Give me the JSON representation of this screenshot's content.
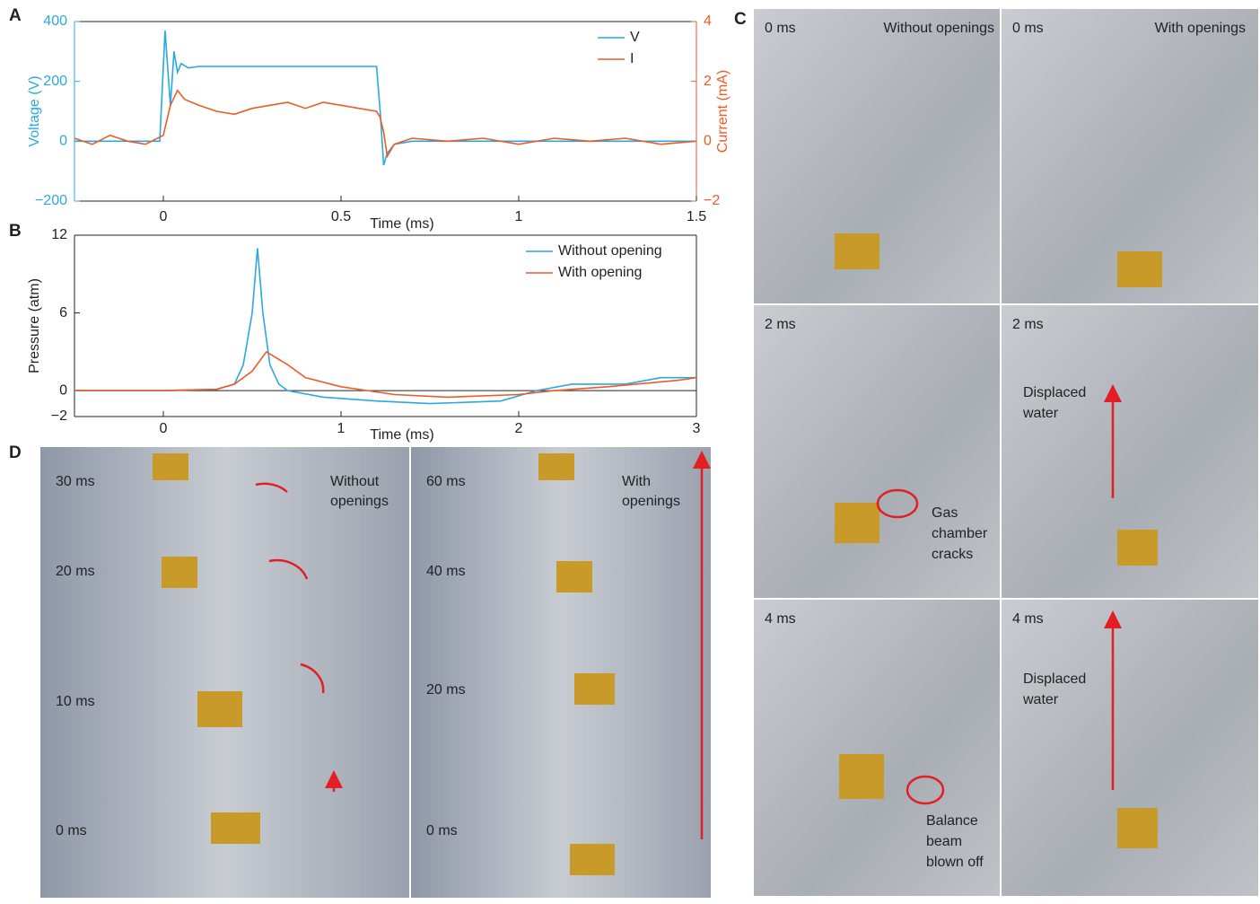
{
  "chart_data": [
    {
      "type": "line",
      "panel": "A",
      "xlabel": "Time (ms)",
      "ylabel": "Voltage (V)",
      "y2label": "Current (mA)",
      "xlim": [
        -0.25,
        1.5
      ],
      "xticks": [
        0,
        0.5,
        1,
        1.5
      ],
      "ylim": [
        -200,
        400
      ],
      "yticks": [
        {
          "value": -200,
          "label": "−200"
        },
        0,
        200,
        400
      ],
      "y2lim": [
        -2,
        4
      ],
      "y2ticks": [
        {
          "value": -2,
          "label": "−2"
        },
        0,
        2,
        4
      ],
      "legend": "top-right",
      "series": [
        {
          "name": "V",
          "color": "#29a9df",
          "axis": "y",
          "x": [
            -0.25,
            -0.01,
            0,
            0.005,
            0.01,
            0.02,
            0.03,
            0.04,
            0.05,
            0.07,
            0.1,
            0.3,
            0.5,
            0.6,
            0.61,
            0.62,
            0.63,
            0.65,
            0.7,
            1.0,
            1.5
          ],
          "values": [
            0,
            0,
            250,
            370,
            280,
            120,
            300,
            230,
            260,
            245,
            250,
            250,
            250,
            250,
            100,
            -80,
            -40,
            -10,
            0,
            0,
            0
          ]
        },
        {
          "name": "I",
          "color": "#f15a24",
          "axis": "y2",
          "x": [
            -0.25,
            -0.2,
            -0.15,
            -0.1,
            -0.05,
            0,
            0.02,
            0.04,
            0.06,
            0.08,
            0.1,
            0.15,
            0.2,
            0.25,
            0.3,
            0.35,
            0.4,
            0.45,
            0.5,
            0.55,
            0.6,
            0.61,
            0.62,
            0.63,
            0.65,
            0.7,
            0.8,
            0.9,
            1.0,
            1.1,
            1.2,
            1.3,
            1.4,
            1.5
          ],
          "values": [
            0.1,
            -0.1,
            0.2,
            0,
            -0.1,
            0.2,
            1.2,
            1.7,
            1.4,
            1.3,
            1.2,
            1.0,
            0.9,
            1.1,
            1.2,
            1.3,
            1.1,
            1.3,
            1.2,
            1.1,
            1.0,
            0.8,
            0.3,
            -0.5,
            -0.1,
            0.1,
            0,
            0.1,
            -0.1,
            0.1,
            0,
            0.1,
            -0.1,
            0
          ]
        }
      ]
    },
    {
      "type": "line",
      "panel": "B",
      "xlabel": "Time (ms)",
      "ylabel": "Pressure (atm)",
      "xlim": [
        -0.5,
        3
      ],
      "xticks": [
        0,
        1,
        2,
        3
      ],
      "ylim": [
        -2,
        12
      ],
      "yticks": [
        {
          "value": -2,
          "label": "−2"
        },
        0,
        6,
        12
      ],
      "zero_line": true,
      "legend": "top-right",
      "series": [
        {
          "name": "Without opening",
          "color": "#29a9df",
          "x": [
            -0.5,
            0,
            0.3,
            0.4,
            0.45,
            0.5,
            0.53,
            0.56,
            0.6,
            0.65,
            0.7,
            0.9,
            1.2,
            1.5,
            1.9,
            2.1,
            2.3,
            2.6,
            2.8,
            3
          ],
          "values": [
            0,
            0,
            0.1,
            0.5,
            2,
            6,
            11,
            6,
            2,
            0.5,
            0,
            -0.5,
            -0.8,
            -1,
            -0.8,
            0,
            0.5,
            0.5,
            1,
            1
          ]
        },
        {
          "name": "With opening",
          "color": "#f15a24",
          "x": [
            -0.5,
            0,
            0.3,
            0.4,
            0.5,
            0.58,
            0.7,
            0.8,
            1,
            1.3,
            1.6,
            2,
            2.2,
            2.5,
            2.9,
            3
          ],
          "values": [
            0,
            0,
            0.1,
            0.5,
            1.5,
            3,
            2,
            1,
            0.3,
            -0.3,
            -0.5,
            -0.3,
            0,
            0.3,
            0.8,
            1
          ]
        }
      ]
    }
  ],
  "panel_c": {
    "label": "C",
    "frames": [
      {
        "time": "0 ms",
        "caption": [
          "Without openings"
        ]
      },
      {
        "time": "0 ms",
        "caption": [
          "With openings"
        ]
      },
      {
        "time": "2 ms",
        "caption": [
          "Gas",
          "chamber",
          "cracks"
        ]
      },
      {
        "time": "2 ms",
        "caption": [
          "Displaced",
          "water"
        ]
      },
      {
        "time": "4 ms",
        "caption": [
          "Balance",
          "beam",
          "blown off"
        ]
      },
      {
        "time": "4 ms",
        "caption": [
          "Displaced",
          "water"
        ]
      }
    ]
  },
  "panel_d": {
    "label": "D",
    "strips": [
      {
        "times": [
          "30 ms",
          "20 ms",
          "10 ms",
          "0 ms"
        ],
        "caption": [
          "Without",
          "openings"
        ]
      },
      {
        "times": [
          "60 ms",
          "40 ms",
          "20 ms",
          "0 ms"
        ],
        "caption": [
          "With",
          "openings"
        ]
      }
    ]
  }
}
